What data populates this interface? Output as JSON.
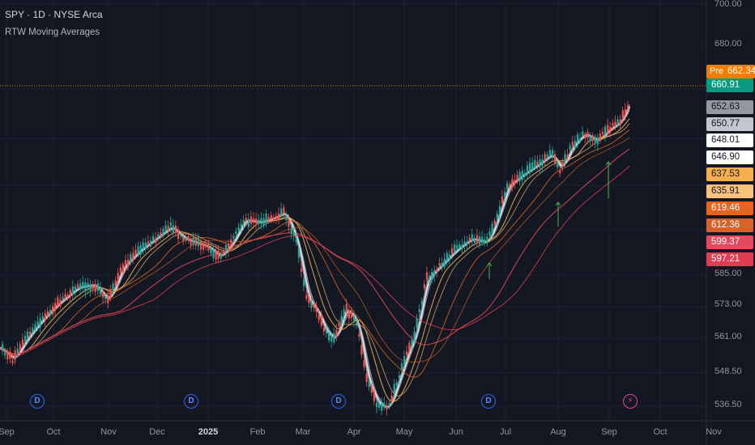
{
  "header": {
    "symbol_line": "SPY · 1D · NYSE Arca",
    "indicator": "RTW Moving Averages"
  },
  "y_axis_ticks": [
    "700.00",
    "680.00",
    "585.00",
    "573.00",
    "561.00",
    "548.50",
    "536.50"
  ],
  "x_axis_ticks": [
    "Sep",
    "Oct",
    "Nov",
    "Dec",
    "2025",
    "Feb",
    "Mar",
    "Apr",
    "May",
    "Jun",
    "Jul",
    "Aug",
    "Sep",
    "Oct",
    "Nov"
  ],
  "pre_market": {
    "label": "Pre",
    "price": "662.34"
  },
  "price_labels": [
    {
      "value": "660.91",
      "bg": "#089981",
      "fg": "#ffffff"
    },
    {
      "value": "652.63",
      "bg": "#9598a1",
      "fg": "#131722"
    },
    {
      "value": "650.77",
      "bg": "#c3c6ce",
      "fg": "#131722"
    },
    {
      "value": "648.01",
      "bg": "#ffffff",
      "fg": "#131722"
    },
    {
      "value": "646.90",
      "bg": "#ffffff",
      "fg": "#131722"
    },
    {
      "value": "637.53",
      "bg": "#f5b04c",
      "fg": "#131722"
    },
    {
      "value": "635.91",
      "bg": "#f7c27a",
      "fg": "#131722"
    },
    {
      "value": "619.46",
      "bg": "#e8641c",
      "fg": "#ffffff"
    },
    {
      "value": "612.36",
      "bg": "#d9622b",
      "fg": "#ffffff"
    },
    {
      "value": "599.37",
      "bg": "#e5495d",
      "fg": "#ffffff"
    },
    {
      "value": "597.21",
      "bg": "#e23c52",
      "fg": "#ffffff"
    }
  ],
  "events": [
    {
      "type": "dividend",
      "icon": "D"
    },
    {
      "type": "dividend",
      "icon": "D"
    },
    {
      "type": "dividend",
      "icon": "D"
    },
    {
      "type": "dividend",
      "icon": "D"
    },
    {
      "type": "split",
      "icon": "⚡"
    }
  ],
  "colors": {
    "background": "#131722",
    "up": "#26a69a",
    "down": "#ef5350",
    "pre_line": "#f57c00"
  }
}
